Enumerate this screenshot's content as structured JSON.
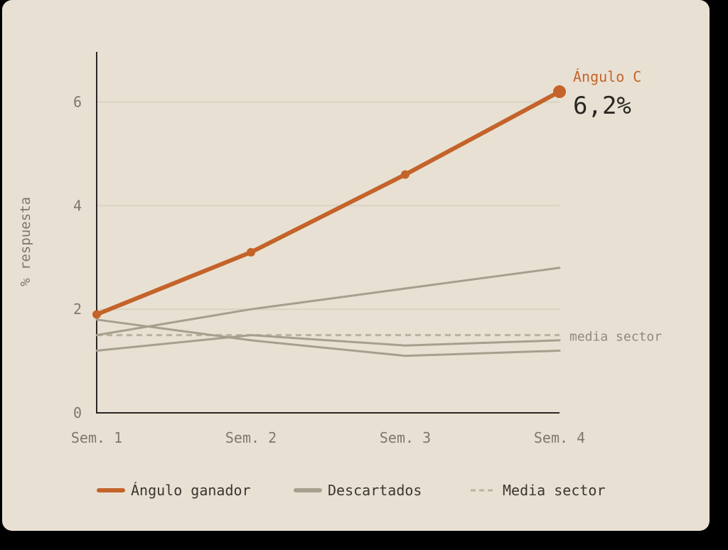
{
  "chart_data": {
    "type": "line",
    "title": "",
    "xlabel": "",
    "ylabel": "% respuesta",
    "categories": [
      "Sem. 1",
      "Sem. 2",
      "Sem. 3",
      "Sem. 4"
    ],
    "ylim": [
      0,
      7
    ],
    "yticks": [
      0,
      2,
      4,
      6
    ],
    "grid": true,
    "legend_position": "bottom",
    "series": [
      {
        "name": "Ángulo ganador",
        "role": "highlight",
        "color": "#c4632a",
        "values": [
          1.9,
          3.1,
          4.6,
          6.2
        ],
        "markers": true
      },
      {
        "role": "muted",
        "color": "#a69f8e",
        "values": [
          1.5,
          2.0,
          2.4,
          2.8
        ]
      },
      {
        "role": "muted",
        "color": "#a69f8e",
        "values": [
          1.8,
          1.4,
          1.1,
          1.2
        ]
      },
      {
        "role": "muted",
        "color": "#a69f8e",
        "values": [
          1.2,
          1.5,
          1.3,
          1.4
        ]
      },
      {
        "role": "benchmark",
        "color": "#b9b2a1",
        "dashed": true,
        "values": [
          1.5,
          1.5,
          1.5,
          1.5
        ]
      }
    ],
    "annotations": {
      "highlight_label": "Ángulo C",
      "highlight_value": "6,2%",
      "benchmark_label": "media sector"
    },
    "legend": [
      {
        "label": "Ángulo ganador",
        "style": "highlight",
        "color": "#c4632a"
      },
      {
        "label": "Descartados",
        "style": "muted",
        "color": "#a69f8e"
      },
      {
        "label": "Media sector",
        "style": "dashed",
        "color": "#b9b2a1"
      }
    ]
  },
  "colors": {
    "card_bg": "#e8e1d3",
    "axis": "#2a2723",
    "grid": "#d9d2c3",
    "tick_text": "#7d776c",
    "value_text": "#2a2723"
  }
}
